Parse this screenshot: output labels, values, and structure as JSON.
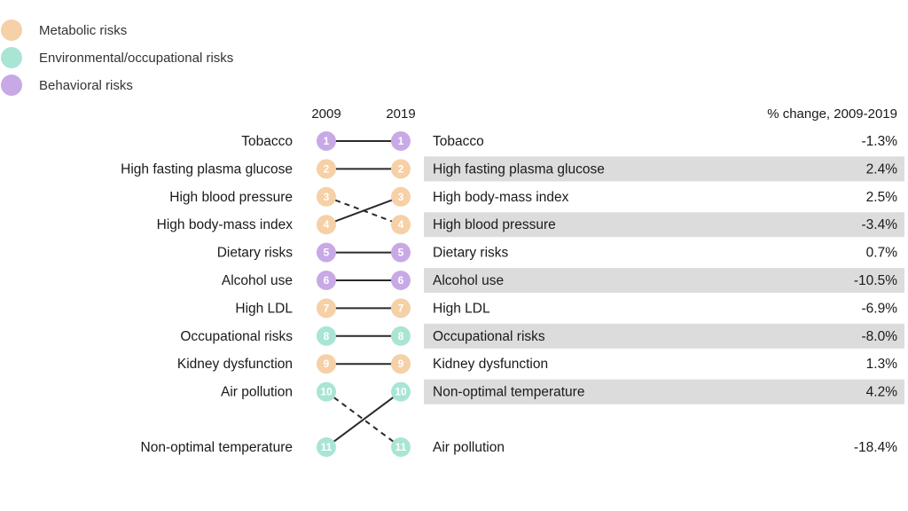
{
  "chart_data": {
    "type": "bump",
    "legend": [
      {
        "label": "Metabolic risks",
        "category": "metabolic"
      },
      {
        "label": "Environmental/occupational risks",
        "category": "environmental"
      },
      {
        "label": "Behavioral risks",
        "category": "behavioral"
      }
    ],
    "colors": {
      "metabolic": "#f6d0a6",
      "environmental": "#a9e5d5",
      "behavioral": "#c8a9e6"
    },
    "years": [
      "2009",
      "2019"
    ],
    "change_header": "% change, 2009-2019",
    "risks": [
      {
        "name": "Tobacco",
        "category": "behavioral",
        "rank2009": 1,
        "rank2019": 1,
        "change": "-1.3%"
      },
      {
        "name": "High fasting plasma glucose",
        "category": "metabolic",
        "rank2009": 2,
        "rank2019": 2,
        "change": "2.4%"
      },
      {
        "name": "High blood pressure",
        "category": "metabolic",
        "rank2009": 3,
        "rank2019": 4,
        "change": "-3.4%"
      },
      {
        "name": "High body-mass index",
        "category": "metabolic",
        "rank2009": 4,
        "rank2019": 3,
        "change": "2.5%"
      },
      {
        "name": "Dietary risks",
        "category": "behavioral",
        "rank2009": 5,
        "rank2019": 5,
        "change": "0.7%"
      },
      {
        "name": "Alcohol use",
        "category": "behavioral",
        "rank2009": 6,
        "rank2019": 6,
        "change": "-10.5%"
      },
      {
        "name": "High LDL",
        "category": "metabolic",
        "rank2009": 7,
        "rank2019": 7,
        "change": "-6.9%"
      },
      {
        "name": "Occupational risks",
        "category": "environmental",
        "rank2009": 8,
        "rank2019": 8,
        "change": "-8.0%"
      },
      {
        "name": "Kidney dysfunction",
        "category": "metabolic",
        "rank2009": 9,
        "rank2019": 9,
        "change": "1.3%"
      },
      {
        "name": "Air pollution",
        "category": "environmental",
        "rank2009": 10,
        "rank2019": 11,
        "change": "-18.4%"
      },
      {
        "name": "Non-optimal temperature",
        "category": "environmental",
        "rank2009": 11,
        "rank2019": 10,
        "change": "4.2%"
      }
    ]
  }
}
